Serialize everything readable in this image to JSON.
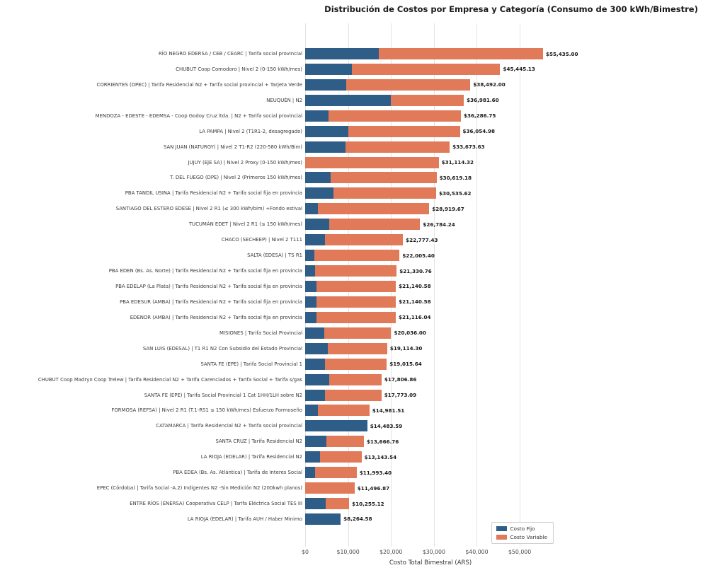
{
  "chart_data": {
    "type": "bar",
    "orientation": "horizontal",
    "stacked": true,
    "title": "Distribución de Costos por Empresa y Categoría (Consumo de 300 kWh/Bimestre)",
    "xlabel": "Costo Total Bimestral (ARS)",
    "ylabel": "",
    "xlim": [
      0,
      58400
    ],
    "grid": "vertical-light-gray",
    "legend_position": "lower-right",
    "background": "#ffffff",
    "grid_color": "#e3e3e3",
    "xticks": [
      {
        "value": 0,
        "label": "$0"
      },
      {
        "value": 10000,
        "label": "$10,000"
      },
      {
        "value": 20000,
        "label": "$20,000"
      },
      {
        "value": 30000,
        "label": "$30,000"
      },
      {
        "value": 40000,
        "label": "$40,000"
      },
      {
        "value": 50000,
        "label": "$50,000"
      }
    ],
    "categories": [
      "RÍO NEGRO  EDERSA / CEB / CEARC | Tarifa social provincial",
      "CHUBUT Coop Comodoro | Nivel 2 (0-150 kWh/mes)",
      "CORRIENTES (DPEC) | Tarifa Residencial N2 + Tarifa social provincial + Tarjeta Verde",
      "NEUQUÉN | N2",
      "MENDOZA - EDESTE - EDEMSA - Coop Godoy Cruz ltda. | N2 + Tarifa social provincial",
      "LA PAMPA | Nivel 2 (T1R1-2, desagregado)",
      "SAN JUAN (NATURGY) | Nivel 2 T1-R2 (220-580 kWh/Bim)",
      "JUJUY (EJE SA) | Nivel 2 Proxy (0-150 kWh/mes)",
      "T. DEL FUEGO (DPE) | Nivel 2 (Primeros 150 kWh/mes)",
      "PBA TANDIL USINA | Tarifa Residencial N2 + Tarifa social fija en provincia",
      "SANTIAGO DEL ESTERO EDESE | Nivel 2 R1 (≤ 300 kWh/bim) +Fondo estival",
      "TUCUMÁN  EDET | Nivel 2 R1 (≤ 150 kWh/mes)",
      "CHACO (SECHEEP) | Nivel 2 T111",
      "SALTA (EDESA) | TS R1",
      "PBA EDEN (Bs. As. Norte) | Tarifa Residencial N2 + Tarifa social fija en provincia",
      "PBA EDELAP (La Plata) | Tarifa Residencial N2 + Tarifa social fija en provincia",
      "PBA EDESUR (AMBA) | Tarifa Residencial N2 + Tarifa social fija en provincia",
      "EDENOR (AMBA) | Tarifa Residencial N2 + Tarifa social fija en provincia",
      "MISIONES | Tarifa Social Provincial",
      "SAN LUIS (EDESAL) | T1 R1 N2 Con Subsidio del Estado Provincial",
      "SANTA FE (EPE) | Tarifa Social Provincial 1",
      "CHUBUT  Coop Madryn Coop Trelew | Tarifa Residencial N2 + Tarifa Carenciados + Tarifa Social + Tarifa s/gas",
      "SANTA FE (EPE) | Tarifa Social Provincial 1 Cat 1HH/1LH sobre N2",
      "FORMOSA (REFSA) | Nivel 2 R1 (T.1-RS1 ≤ 150 kWh/mes) Esfuerzo Formoseño",
      "CATAMARCA | Tarifa Residencial N2 + Tarifa social provincial",
      "SANTA CRUZ | Tarifa Residencial N2",
      "LA RIOJA (EDELAR) | Tarifa Residencial N2",
      "PBA EDEA (Bs. As. Atlántica) | Tarifa de Interes Social",
      "EPEC (Córdoba) | Tarifa Social -A.2) Indigentes N2 -Sin Medición N2 (200kwh planos)",
      "ENTRE RÍOS (ENERSA) Cooperativa CELP | Tarifa Eléctrica Social TES III",
      "LA RIOJA (EDELAR) | Tarifa AUH / Haber Minimo"
    ],
    "series": [
      {
        "name": "Costo Fijo",
        "color": "#2e5d87",
        "values": [
          17200,
          10900,
          9600,
          20000,
          5500,
          10100,
          9450,
          0,
          5950,
          6600,
          3000,
          5550,
          4560,
          2200,
          2350,
          2580,
          2580,
          2650,
          4460,
          5220,
          4630,
          5620,
          4630,
          2980,
          14483.59,
          4890,
          3470,
          2310,
          0,
          4730,
          8264.58
        ]
      },
      {
        "name": "Costo Variable",
        "color": "#e17a59",
        "values": [
          38235.0,
          34545.13,
          28892.0,
          16981.6,
          30786.75,
          25954.98,
          24223.63,
          31114.32,
          24669.18,
          23935.62,
          25919.67,
          21234.24,
          18217.43,
          19805.4,
          18980.76,
          18560.58,
          18560.58,
          18466.04,
          15576.0,
          13894.3,
          14385.64,
          12186.86,
          13143.09,
          12001.51,
          0,
          8776.76,
          9673.54,
          9683.4,
          11496.87,
          5525.12,
          0
        ]
      }
    ],
    "totals": [
      55435.0,
      45445.13,
      38492.0,
      36981.6,
      36286.75,
      36054.98,
      33673.63,
      31114.32,
      30619.18,
      30535.62,
      28919.67,
      26784.24,
      22777.43,
      22005.4,
      21330.76,
      21140.58,
      21140.58,
      21116.04,
      20036.0,
      19114.3,
      19015.64,
      17806.86,
      17773.09,
      14981.51,
      14483.59,
      13666.76,
      13143.54,
      11993.4,
      11496.87,
      10255.12,
      8264.58
    ],
    "total_labels": [
      "$55,435.00",
      "$45,445.13",
      "$38,492.00",
      "$36,981.60",
      "$36,286.75",
      "$36,054.98",
      "$33,673.63",
      "$31,114.32",
      "$30,619.18",
      "$30,535.62",
      "$28,919.67",
      "$26,784.24",
      "$22,777.43",
      "$22,005.40",
      "$21,330.76",
      "$21,140.58",
      "$21,140.58",
      "$21,116.04",
      "$20,036.00",
      "$19,114.30",
      "$19,015.64",
      "$17,806.86",
      "$17,773.09",
      "$14,981.51",
      "$14,483.59",
      "$13,666.76",
      "$13,143.54",
      "$11,993.40",
      "$11,496.87",
      "$10,255.12",
      "$8,264.58"
    ]
  },
  "legend": {
    "fijo_label": "Costo Fijo",
    "variable_label": "Costo Variable"
  }
}
